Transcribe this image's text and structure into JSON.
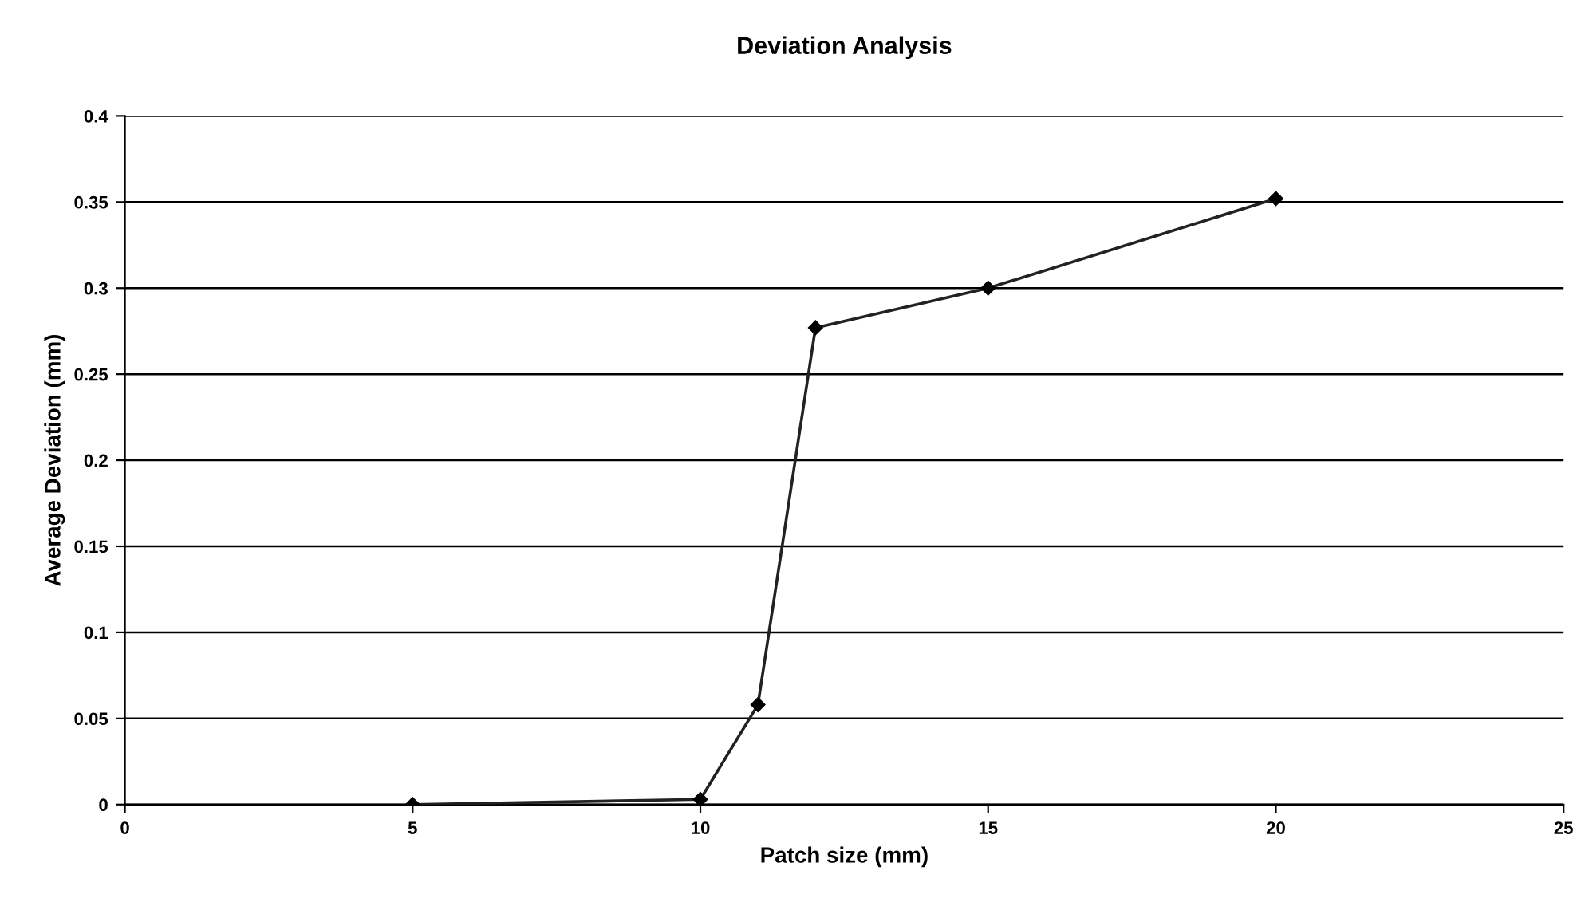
{
  "chart_data": {
    "type": "line",
    "title": "Deviation Analysis",
    "xlabel": "Patch size (mm)",
    "ylabel": "Average Deviation (mm)",
    "x": [
      5,
      10,
      11,
      12,
      15,
      20
    ],
    "series": [
      {
        "color": "#222222",
        "values": [
          0,
          0.003,
          0.058,
          0.277,
          0.3,
          0.352
        ]
      }
    ],
    "xlim": [
      0,
      25
    ],
    "xticks": [
      0,
      5,
      10,
      15,
      20,
      25
    ],
    "ylim": [
      0,
      0.4
    ],
    "yticks": [
      0,
      0.05,
      0.1,
      0.15,
      0.2,
      0.25,
      0.3,
      0.35,
      0.4
    ],
    "grid": "y",
    "marker": "diamond",
    "line_style": "solid",
    "legend": false
  }
}
